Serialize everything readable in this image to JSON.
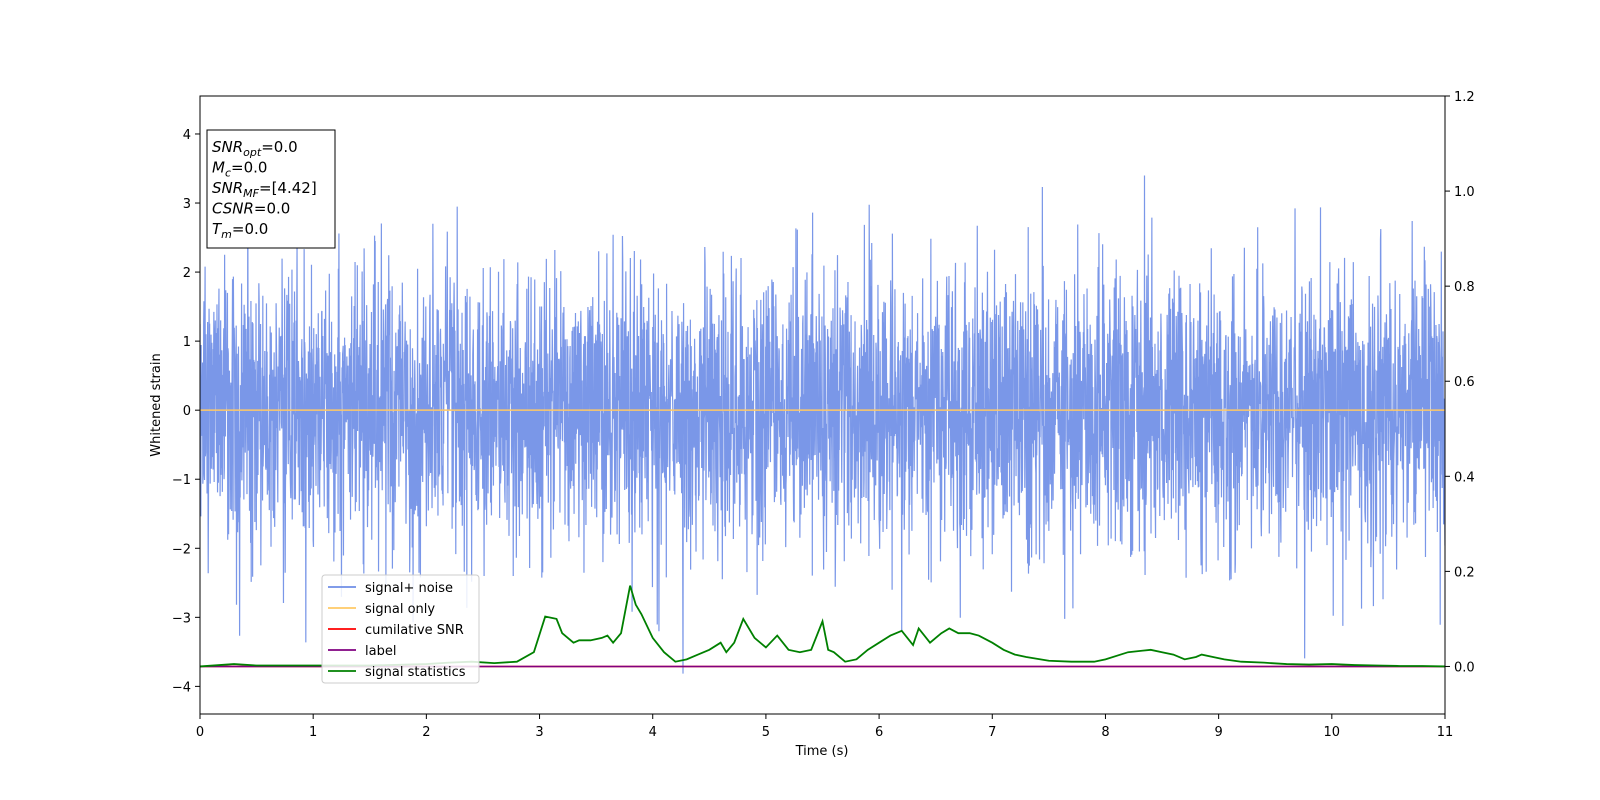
{
  "chart_data": {
    "type": "line",
    "xlabel": "Time (s)",
    "ylabel": "Whitened strain",
    "xlim": [
      0,
      11
    ],
    "ylim": [
      -4.4,
      4.55
    ],
    "y2lim": [
      -0.1,
      1.2
    ],
    "x_ticks": [
      0,
      1,
      2,
      3,
      4,
      5,
      6,
      7,
      8,
      9,
      10,
      11
    ],
    "y_ticks": [
      -4,
      -3,
      -2,
      -1,
      0,
      1,
      2,
      3,
      4
    ],
    "y_tick_labels": [
      "−4",
      "−3",
      "−2",
      "−1",
      "0",
      "1",
      "2",
      "3",
      "4"
    ],
    "y2_ticks": [
      0.0,
      0.2,
      0.4,
      0.6,
      0.8,
      1.0,
      1.2
    ],
    "y2_tick_labels": [
      "0.0",
      "0.2",
      "0.4",
      "0.6",
      "0.8",
      "1.0",
      "1.2"
    ],
    "grid": false,
    "legend_position": "lower-left",
    "series": [
      {
        "name": "signal+ noise",
        "color": "#6f8ee6",
        "axis": "left",
        "kind": "noise",
        "amplitude_sigma": 1.0,
        "peak_extent": [
          -3.95,
          4.18
        ]
      },
      {
        "name": "signal only",
        "color": "#ffc966",
        "axis": "left",
        "value": 0.0
      },
      {
        "name": "cumilative SNR",
        "color": "#ff0000",
        "axis": "right",
        "value": 0.0
      },
      {
        "name": "label",
        "color": "#800080",
        "axis": "right",
        "value": 0.0
      },
      {
        "name": "signal statistics",
        "color": "#008000",
        "axis": "right",
        "x": [
          0,
          0.3,
          0.5,
          1.0,
          1.5,
          2.0,
          2.2,
          2.4,
          2.6,
          2.8,
          2.95,
          3.05,
          3.15,
          3.2,
          3.3,
          3.35,
          3.45,
          3.55,
          3.6,
          3.65,
          3.72,
          3.8,
          3.85,
          3.9,
          4.0,
          4.1,
          4.2,
          4.3,
          4.4,
          4.5,
          4.6,
          4.65,
          4.72,
          4.8,
          4.9,
          5.0,
          5.1,
          5.2,
          5.3,
          5.4,
          5.5,
          5.55,
          5.6,
          5.7,
          5.8,
          5.9,
          6.0,
          6.1,
          6.2,
          6.3,
          6.35,
          6.45,
          6.55,
          6.62,
          6.7,
          6.8,
          6.88,
          7.0,
          7.1,
          7.2,
          7.3,
          7.5,
          7.7,
          7.8,
          7.9,
          8.0,
          8.2,
          8.4,
          8.5,
          8.6,
          8.7,
          8.8,
          8.85,
          8.95,
          9.05,
          9.2,
          9.4,
          9.6,
          9.8,
          10.0,
          10.2,
          10.4,
          10.6,
          10.8,
          11.0
        ],
        "values": [
          0.0,
          0.005,
          0.002,
          0.002,
          0.002,
          0.005,
          0.008,
          0.01,
          0.007,
          0.01,
          0.03,
          0.105,
          0.1,
          0.07,
          0.05,
          0.055,
          0.055,
          0.06,
          0.065,
          0.05,
          0.07,
          0.17,
          0.13,
          0.11,
          0.06,
          0.03,
          0.01,
          0.015,
          0.025,
          0.035,
          0.05,
          0.03,
          0.05,
          0.1,
          0.06,
          0.04,
          0.065,
          0.035,
          0.03,
          0.035,
          0.095,
          0.035,
          0.03,
          0.01,
          0.015,
          0.035,
          0.05,
          0.065,
          0.075,
          0.045,
          0.08,
          0.05,
          0.07,
          0.08,
          0.07,
          0.07,
          0.065,
          0.05,
          0.035,
          0.025,
          0.02,
          0.012,
          0.01,
          0.01,
          0.01,
          0.015,
          0.03,
          0.035,
          0.03,
          0.025,
          0.015,
          0.02,
          0.025,
          0.02,
          0.015,
          0.01,
          0.008,
          0.005,
          0.004,
          0.005,
          0.003,
          0.002,
          0.001,
          0.001,
          0.0
        ]
      }
    ]
  },
  "info_box": {
    "lines": [
      {
        "sym": "SNR",
        "sub": "opt",
        "val": "=0.0"
      },
      {
        "sym": "M",
        "sub": "c",
        "val": "=0.0"
      },
      {
        "sym": "SNR",
        "sub": "MF",
        "val": "=[4.42]"
      },
      {
        "sym": "CSNR",
        "sub": "",
        "val": "=0.0"
      },
      {
        "sym": "T",
        "sub": "m",
        "val": "=0.0"
      }
    ]
  }
}
